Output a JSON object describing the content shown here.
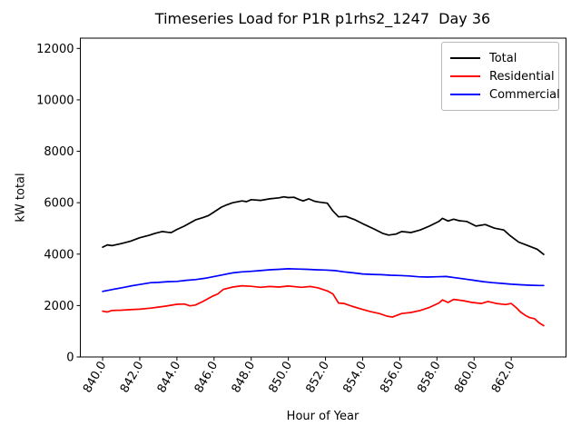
{
  "figure": {
    "background": "#ffffff",
    "frame_color": "#000000"
  },
  "chart_data": {
    "type": "line",
    "title": "Timeseries Load for P1R p1rhs2_1247  Day 36",
    "xlabel": "Hour of Year",
    "ylabel": "kW total",
    "xlim": [
      838.8,
      864.95
    ],
    "ylim": [
      0,
      12400
    ],
    "grid": false,
    "legend_position": "upper right",
    "x_ticks": [
      840,
      842,
      844,
      846,
      848,
      850,
      852,
      854,
      856,
      858,
      860,
      862
    ],
    "x_ticklabels": [
      "840.0",
      "842.0",
      "844.0",
      "846.0",
      "848.0",
      "850.0",
      "852.0",
      "854.0",
      "856.0",
      "858.0",
      "860.0",
      "862.0"
    ],
    "x_ticklabel_rotation_deg": 60,
    "y_ticks": [
      0,
      2000,
      4000,
      6000,
      8000,
      10000,
      12000
    ],
    "y_ticklabels": [
      "0",
      "2000",
      "4000",
      "6000",
      "8000",
      "10000",
      "12000"
    ],
    "series": [
      {
        "name": "Total",
        "color": "#000000",
        "x": [
          840.0,
          840.25,
          840.5,
          841.0,
          841.5,
          842.0,
          842.5,
          842.8,
          843.2,
          843.5,
          843.7,
          844.0,
          844.4,
          845.0,
          845.4,
          845.7,
          846.0,
          846.4,
          846.7,
          847.0,
          847.5,
          847.75,
          848.0,
          848.5,
          849.0,
          849.5,
          849.75,
          850.0,
          850.3,
          850.6,
          850.8,
          851.1,
          851.4,
          851.6,
          852.1,
          852.4,
          852.7,
          853.1,
          853.6,
          854.1,
          854.6,
          855.1,
          855.4,
          855.8,
          856.1,
          856.6,
          857.1,
          857.6,
          858.1,
          858.3,
          858.6,
          858.9,
          859.2,
          859.6,
          860.1,
          860.6,
          861.1,
          861.6,
          861.9,
          862.4,
          862.9,
          863.4,
          863.75
        ],
        "values": [
          4270,
          4360,
          4330,
          4410,
          4500,
          4640,
          4730,
          4800,
          4880,
          4850,
          4840,
          4960,
          5090,
          5330,
          5420,
          5500,
          5640,
          5830,
          5920,
          6000,
          6070,
          6040,
          6120,
          6090,
          6150,
          6190,
          6230,
          6200,
          6210,
          6120,
          6070,
          6150,
          6060,
          6030,
          5980,
          5680,
          5450,
          5470,
          5330,
          5150,
          4980,
          4800,
          4740,
          4780,
          4880,
          4840,
          4940,
          5090,
          5270,
          5390,
          5290,
          5360,
          5300,
          5270,
          5090,
          5150,
          5010,
          4940,
          4740,
          4470,
          4330,
          4190,
          3990
        ]
      },
      {
        "name": "Residential",
        "color": "#ff0000",
        "x": [
          840.0,
          840.25,
          840.5,
          841.0,
          841.5,
          842.0,
          842.6,
          843.0,
          843.4,
          844.0,
          844.4,
          844.7,
          845.0,
          845.4,
          845.9,
          846.2,
          846.5,
          847.0,
          847.5,
          848.0,
          848.5,
          849.0,
          849.5,
          850.0,
          850.4,
          850.7,
          851.2,
          851.6,
          852.1,
          852.4,
          852.7,
          853.0,
          853.4,
          853.9,
          854.4,
          854.9,
          855.3,
          855.6,
          856.1,
          856.6,
          857.1,
          857.6,
          858.1,
          858.3,
          858.6,
          858.9,
          859.4,
          859.9,
          860.4,
          860.75,
          861.2,
          861.7,
          862.0,
          862.25,
          862.5,
          862.75,
          863.0,
          863.25,
          863.5,
          863.75
        ],
        "values": [
          1780,
          1750,
          1810,
          1820,
          1840,
          1860,
          1900,
          1940,
          1980,
          2050,
          2060,
          1990,
          2020,
          2160,
          2360,
          2450,
          2630,
          2720,
          2770,
          2750,
          2710,
          2740,
          2720,
          2760,
          2730,
          2710,
          2740,
          2690,
          2570,
          2450,
          2100,
          2080,
          1980,
          1870,
          1770,
          1690,
          1590,
          1550,
          1690,
          1730,
          1810,
          1930,
          2100,
          2220,
          2120,
          2240,
          2190,
          2120,
          2080,
          2160,
          2080,
          2040,
          2080,
          1930,
          1750,
          1620,
          1530,
          1490,
          1330,
          1220
        ]
      },
      {
        "name": "Commercial",
        "color": "#0000ff",
        "x": [
          840.0,
          840.5,
          841.0,
          841.5,
          842.0,
          842.6,
          843.0,
          843.5,
          844.0,
          844.5,
          845.0,
          845.5,
          846.0,
          846.5,
          847.0,
          847.5,
          848.0,
          848.5,
          849.0,
          849.5,
          850.0,
          850.5,
          851.0,
          851.5,
          852.0,
          852.5,
          853.0,
          853.5,
          854.0,
          854.5,
          855.0,
          855.5,
          856.0,
          856.5,
          857.0,
          857.5,
          858.0,
          858.5,
          859.0,
          859.5,
          860.0,
          860.5,
          861.0,
          861.5,
          862.0,
          862.5,
          863.0,
          863.5,
          863.75
        ],
        "values": [
          2550,
          2620,
          2690,
          2760,
          2820,
          2890,
          2900,
          2930,
          2940,
          2980,
          3010,
          3060,
          3130,
          3200,
          3270,
          3310,
          3330,
          3360,
          3390,
          3410,
          3430,
          3420,
          3410,
          3390,
          3380,
          3360,
          3310,
          3270,
          3230,
          3210,
          3200,
          3180,
          3170,
          3150,
          3120,
          3110,
          3120,
          3130,
          3080,
          3030,
          2980,
          2930,
          2890,
          2860,
          2830,
          2810,
          2790,
          2780,
          2780
        ]
      }
    ]
  }
}
